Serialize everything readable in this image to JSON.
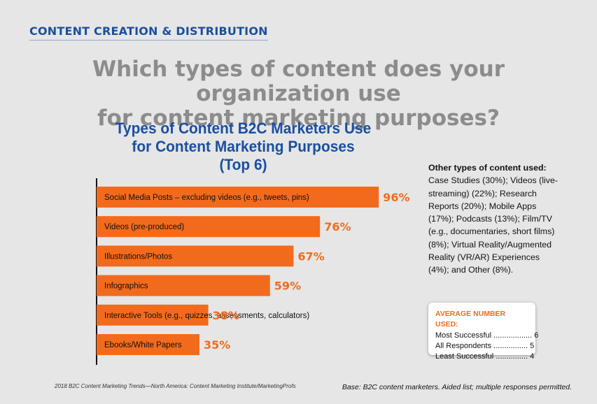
{
  "section_label": "CONTENT CREATION & DISTRIBUTION",
  "question": [
    "Which types of content does your organization use",
    "for content marketing purposes?"
  ],
  "colors": {
    "bar": "#f26b1d",
    "title": "#1a4fa0",
    "question": "#8c8c8c"
  },
  "chart_data": {
    "type": "bar",
    "orientation": "horizontal",
    "title": "Types of Content B2C Marketers Use for Content Marketing Purposes (Top 6)",
    "title_lines": [
      "Types of Content B2C Marketers Use",
      "for Content Marketing Purposes",
      "(Top 6)"
    ],
    "categories": [
      "Social Media Posts – excluding videos (e.g., tweets, pins)",
      "Videos (pre-produced)",
      "Illustrations/Photos",
      "Infographics",
      "Interactive Tools (e.g., quizzes, assessments, calculators)",
      "Ebooks/White Papers"
    ],
    "values": [
      96,
      76,
      67,
      59,
      38,
      35
    ],
    "value_labels": [
      "96%",
      "76%",
      "67%",
      "59%",
      "38%",
      "35%"
    ],
    "xlim": [
      0,
      100
    ],
    "grid": false,
    "legend": "none"
  },
  "other_types": {
    "heading": "Other types of content used:",
    "text": "Case Studies (30%); Videos (live-streaming) (22%); Research Reports (20%); Mobile Apps (17%); Podcasts (13%); Film/TV (e.g., documentaries, short films) (8%); Virtual Reality/Augmented Reality (VR/AR) Experiences (4%); and Other (8%)."
  },
  "average": {
    "title": "AVERAGE NUMBER USED:",
    "rows": [
      "Most Successful .................. 6",
      "All Respondents ................ 5",
      "Least Successful ............... 4"
    ]
  },
  "footer": {
    "source": "2018 B2C Content Marketing Trends—North America: Content Marketing Institute/MarketingProfs",
    "base": "Base: B2C content marketers. Aided list; multiple responses permitted."
  }
}
